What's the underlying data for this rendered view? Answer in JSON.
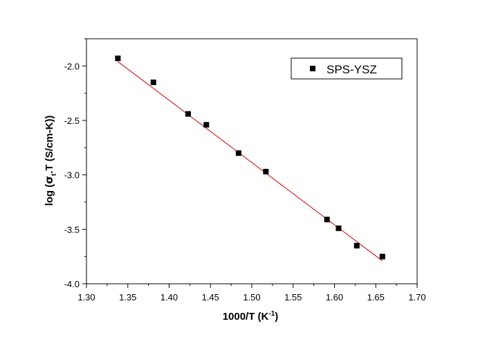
{
  "chart_data": {
    "type": "scatter",
    "xlabel": {
      "main": "1000/T (K",
      "sup": "-1",
      "end": ")"
    },
    "ylabel": {
      "prefix": "log (",
      "sigma": "σ",
      "sub": "t",
      "rest": ".T (S/cm-K))"
    },
    "xlim": [
      1.3,
      1.7
    ],
    "ylim": [
      -4.0,
      -1.75
    ],
    "xticks": [
      1.3,
      1.35,
      1.4,
      1.45,
      1.5,
      1.55,
      1.6,
      1.65,
      1.7
    ],
    "xtick_labels": [
      "1.30",
      "1.35",
      "1.40",
      "1.45",
      "1.50",
      "1.55",
      "1.60",
      "1.65",
      "1.70"
    ],
    "yticks": [
      -2.0,
      -2.5,
      -3.0,
      -3.5,
      -4.0
    ],
    "ytick_labels": [
      "-2.0",
      "-2.5",
      "-3.0",
      "-3.5",
      "-4.0"
    ],
    "grid": false,
    "legend_position": "top-right",
    "series": [
      {
        "name": "SPS-YSZ",
        "marker": "square",
        "color": "#000000",
        "x": [
          1.338,
          1.381,
          1.423,
          1.445,
          1.484,
          1.517,
          1.591,
          1.605,
          1.627,
          1.658
        ],
        "y": [
          -1.93,
          -2.15,
          -2.44,
          -2.54,
          -2.8,
          -2.97,
          -3.41,
          -3.49,
          -3.65,
          -3.75
        ]
      }
    ],
    "fit_line": {
      "color": "#cc0000",
      "x": [
        1.338,
        1.658
      ],
      "y": [
        -1.96,
        -3.79
      ]
    }
  }
}
